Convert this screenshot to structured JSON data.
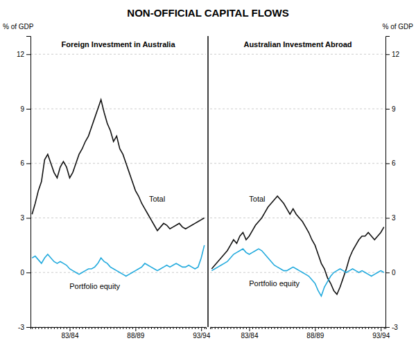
{
  "chart_data": [
    {
      "type": "line",
      "title": "NON-OFFICIAL CAPITAL FLOWS",
      "subtitle": "Foreign Investment in Australia",
      "ylabel": "% of GDP",
      "categories": [
        null,
        null,
        null,
        null,
        null,
        null,
        null,
        null,
        null,
        null,
        null,
        null,
        "83/84",
        null,
        null,
        null,
        null,
        null,
        null,
        null,
        null,
        null,
        null,
        null,
        null,
        null,
        null,
        null,
        null,
        null,
        null,
        null,
        null,
        "88/89",
        null,
        null,
        null,
        null,
        null,
        null,
        null,
        null,
        null,
        null,
        null,
        null,
        null,
        null,
        null,
        null,
        null,
        null,
        null,
        null,
        "93/94",
        null
      ],
      "series": [
        {
          "name": "Total",
          "color": "#111111",
          "values": [
            3.2,
            3.8,
            4.5,
            5.0,
            6.2,
            6.5,
            6.0,
            5.5,
            5.2,
            5.8,
            6.1,
            5.8,
            5.2,
            5.5,
            6.0,
            6.5,
            6.8,
            7.2,
            7.5,
            8.0,
            8.5,
            9.0,
            9.5,
            8.8,
            8.2,
            7.8,
            7.2,
            7.5,
            6.8,
            6.5,
            6.0,
            5.5,
            5.0,
            4.5,
            4.2,
            3.8,
            3.5,
            3.2,
            2.9,
            2.6,
            2.3,
            2.5,
            2.7,
            2.6,
            2.4,
            2.5,
            2.6,
            2.7,
            2.5,
            2.4,
            2.5,
            2.6,
            2.7,
            2.8,
            2.9,
            3.0
          ]
        },
        {
          "name": "Portfolio equity",
          "color": "#22aadd",
          "values": [
            0.8,
            0.9,
            0.7,
            0.5,
            0.8,
            1.0,
            0.8,
            0.6,
            0.5,
            0.6,
            0.5,
            0.4,
            0.2,
            0.1,
            0.0,
            -0.1,
            0.0,
            0.1,
            0.2,
            0.2,
            0.3,
            0.5,
            0.8,
            0.6,
            0.5,
            0.3,
            0.2,
            0.1,
            0.0,
            -0.1,
            -0.2,
            -0.1,
            0.0,
            0.1,
            0.2,
            0.3,
            0.5,
            0.4,
            0.3,
            0.2,
            0.1,
            0.2,
            0.3,
            0.4,
            0.3,
            0.4,
            0.5,
            0.4,
            0.3,
            0.3,
            0.4,
            0.3,
            0.2,
            0.3,
            0.8,
            1.5
          ]
        }
      ],
      "ylim": [
        -3,
        13
      ],
      "yticks": [
        -3,
        0,
        3,
        6,
        9,
        12
      ],
      "grid": true
    },
    {
      "type": "line",
      "subtitle": "Australian Investment Abroad",
      "ylabel": "% of GDP",
      "categories": [
        null,
        null,
        null,
        null,
        null,
        null,
        null,
        null,
        null,
        null,
        null,
        null,
        "83/84",
        null,
        null,
        null,
        null,
        null,
        null,
        null,
        null,
        null,
        null,
        null,
        null,
        null,
        null,
        null,
        null,
        null,
        null,
        null,
        null,
        "88/89",
        null,
        null,
        null,
        null,
        null,
        null,
        null,
        null,
        null,
        null,
        null,
        null,
        null,
        null,
        null,
        null,
        null,
        null,
        null,
        null,
        "93/94",
        null
      ],
      "series": [
        {
          "name": "Total",
          "color": "#111111",
          "values": [
            0.2,
            0.4,
            0.6,
            0.8,
            1.0,
            1.2,
            1.5,
            1.8,
            1.6,
            2.0,
            2.2,
            1.8,
            2.0,
            2.3,
            2.6,
            2.8,
            3.0,
            3.3,
            3.6,
            3.8,
            4.0,
            4.2,
            4.0,
            3.8,
            3.5,
            3.2,
            3.5,
            3.2,
            3.0,
            2.8,
            2.5,
            2.2,
            1.8,
            1.5,
            1.0,
            0.5,
            0.2,
            -0.3,
            -0.6,
            -1.0,
            -1.2,
            -0.8,
            -0.3,
            0.2,
            0.8,
            1.2,
            1.5,
            1.8,
            2.0,
            2.0,
            2.2,
            2.0,
            1.8,
            2.0,
            2.2,
            2.5
          ]
        },
        {
          "name": "Portfolio equity",
          "color": "#22aadd",
          "values": [
            0.1,
            0.2,
            0.3,
            0.4,
            0.5,
            0.6,
            0.8,
            1.0,
            1.1,
            1.2,
            1.3,
            1.1,
            1.0,
            1.1,
            1.2,
            1.3,
            1.2,
            1.0,
            0.8,
            0.6,
            0.4,
            0.3,
            0.2,
            0.1,
            0.1,
            0.2,
            0.3,
            0.2,
            0.1,
            0.0,
            -0.1,
            -0.2,
            -0.4,
            -0.6,
            -1.0,
            -1.3,
            -0.8,
            -0.5,
            -0.2,
            0.0,
            0.1,
            0.2,
            0.1,
            0.0,
            0.1,
            0.2,
            0.1,
            0.0,
            0.1,
            0.0,
            -0.1,
            -0.2,
            -0.1,
            0.0,
            0.1,
            0.0
          ]
        }
      ],
      "ylim": [
        -3,
        13
      ],
      "yticks": [
        -3,
        0,
        3,
        6,
        9,
        12
      ],
      "grid": true
    }
  ]
}
